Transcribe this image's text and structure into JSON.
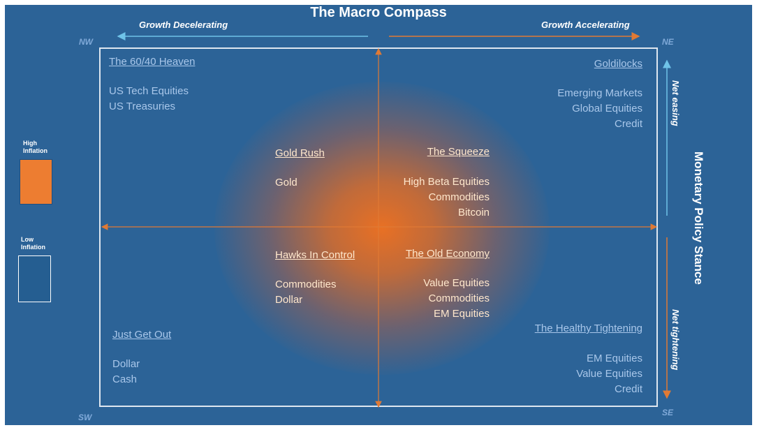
{
  "title": "The Macro Compass",
  "axes": {
    "growth_left": "Growth Decelerating",
    "growth_right": "Growth Accelerating",
    "policy_title": "Monetary Policy Stance",
    "policy_up": "Net easing",
    "policy_down": "Net tightening"
  },
  "corners": {
    "nw": "NW",
    "ne": "NE",
    "sw": "SW",
    "se": "SE"
  },
  "legend": {
    "high": {
      "label_line1": "High",
      "label_line2": "Inflation",
      "color": "#ed7d31"
    },
    "low": {
      "label_line1": "Low",
      "label_line2": "Inflation",
      "color": "#255e91"
    }
  },
  "quadrants": {
    "nw_outer": {
      "title": "The 60/40 Heaven",
      "items": [
        "US Tech Equities",
        "US Treasuries"
      ]
    },
    "ne_outer": {
      "title": "Goldilocks",
      "items": [
        "Emerging Markets",
        "Global Equities",
        "Credit"
      ]
    },
    "sw_outer": {
      "title": "Just Get Out",
      "items": [
        "Dollar",
        "Cash"
      ]
    },
    "se_outer": {
      "title": "The Healthy Tightening",
      "items": [
        "EM Equities",
        "Value Equities",
        "Credit"
      ]
    },
    "nw_inner": {
      "title": "Gold Rush",
      "items": [
        "Gold"
      ]
    },
    "ne_inner": {
      "title": "The Squeeze",
      "items": [
        "High Beta Equities",
        "Commodities",
        "Bitcoin"
      ]
    },
    "sw_inner": {
      "title": "Hawks In Control",
      "items": [
        "Commodities",
        "Dollar"
      ]
    },
    "se_inner": {
      "title": "The Old Economy",
      "items": [
        "Value Equities",
        "Commodities",
        "EM Equities"
      ]
    }
  },
  "colors": {
    "background": "#2c6397",
    "arrow_orange": "#e07a35",
    "arrow_blue": "#6fc3e8",
    "outer_text": "#a9c7ea",
    "inner_text": "#ffe7cc"
  }
}
